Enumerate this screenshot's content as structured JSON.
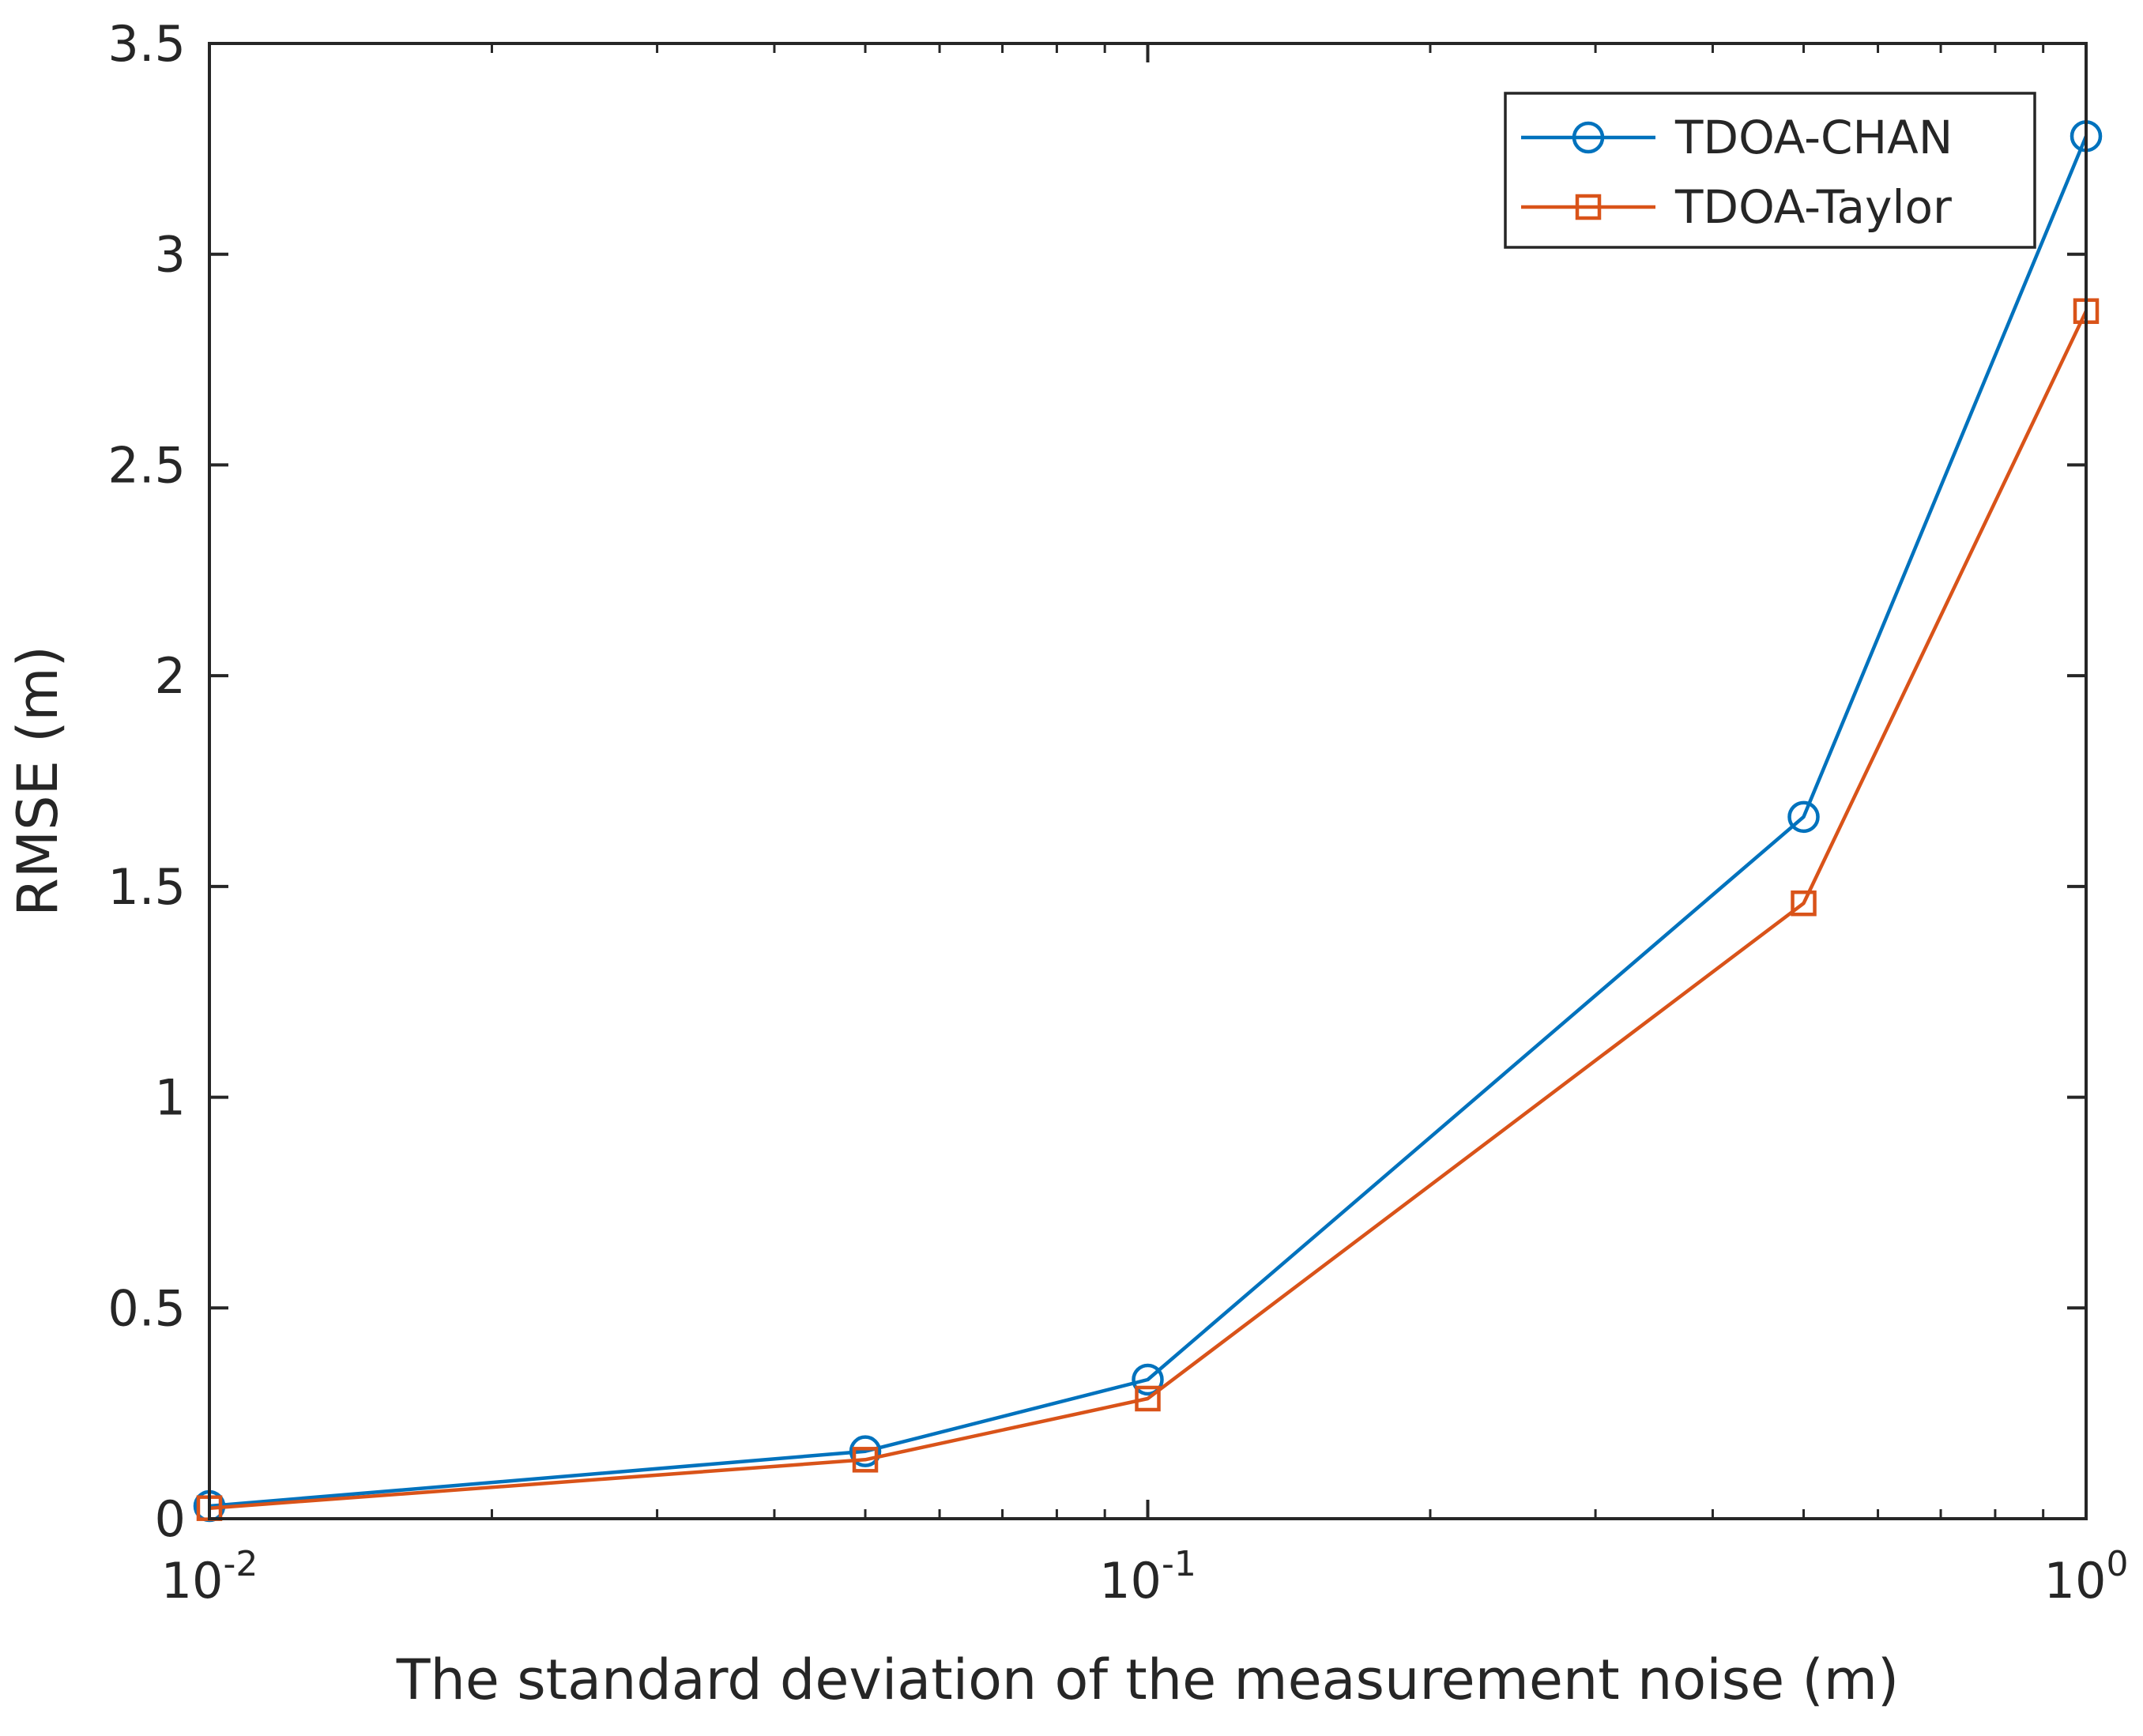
{
  "chart_data": {
    "type": "line",
    "title": "",
    "xlabel": "The standard deviation of the measurement noise (m)",
    "ylabel": "RMSE (m)",
    "xscale": "log",
    "xlim": [
      0.01,
      1
    ],
    "ylim": [
      0,
      3.5
    ],
    "grid": false,
    "legend_position": "top-right",
    "x": [
      0.01,
      0.05,
      0.1,
      0.5,
      1
    ],
    "x_ticks": [
      {
        "value": 0.01,
        "base": "10",
        "exp": "-2"
      },
      {
        "value": 0.1,
        "base": "10",
        "exp": "-1"
      },
      {
        "value": 1,
        "base": "10",
        "exp": "0"
      }
    ],
    "y_ticks": [
      {
        "value": 0,
        "label": "0"
      },
      {
        "value": 0.5,
        "label": "0.5"
      },
      {
        "value": 1,
        "label": "1"
      },
      {
        "value": 1.5,
        "label": "1.5"
      },
      {
        "value": 2,
        "label": "2"
      },
      {
        "value": 2.5,
        "label": "2.5"
      },
      {
        "value": 3,
        "label": "3"
      },
      {
        "value": 3.5,
        "label": "3.5"
      }
    ],
    "series": [
      {
        "name": "TDOA-CHAN",
        "color": "#0072BD",
        "marker": "circle",
        "values": [
          0.03,
          0.16,
          0.33,
          1.665,
          3.28
        ]
      },
      {
        "name": "TDOA-Taylor",
        "color": "#D95319",
        "marker": "square",
        "values": [
          0.025,
          0.14,
          0.285,
          1.46,
          2.865
        ]
      }
    ]
  }
}
